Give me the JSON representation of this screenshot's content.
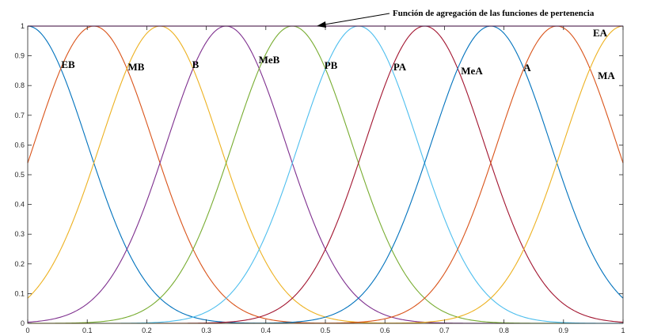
{
  "chart_data": {
    "type": "line",
    "annotation": "Función de agregación de las funciones de pertenencia",
    "xlim": [
      0,
      1
    ],
    "ylim": [
      0,
      1
    ],
    "x_ticks": [
      "0",
      "0.1",
      "0.2",
      "0.3",
      "0.4",
      "0.5",
      "0.6",
      "0.7",
      "0.8",
      "0.9",
      "1"
    ],
    "y_ticks": [
      "0",
      "0.1",
      "0.2",
      "0.3",
      "0.4",
      "0.5",
      "0.6",
      "0.7",
      "0.8",
      "0.9",
      "1"
    ],
    "grid": false,
    "series": [
      {
        "name": "EB",
        "center": 0.0,
        "sigma": 0.1,
        "color": "#0072BD"
      },
      {
        "name": "MB",
        "center": 0.1111,
        "sigma": 0.1,
        "color": "#D95319"
      },
      {
        "name": "B",
        "center": 0.2222,
        "sigma": 0.1,
        "color": "#EDB120"
      },
      {
        "name": "MeB",
        "center": 0.3333,
        "sigma": 0.1,
        "color": "#7E2F8E"
      },
      {
        "name": "PB",
        "center": 0.4444,
        "sigma": 0.1,
        "color": "#77AC30"
      },
      {
        "name": "PA",
        "center": 0.5556,
        "sigma": 0.1,
        "color": "#4DBEEE"
      },
      {
        "name": "MeA",
        "center": 0.6667,
        "sigma": 0.1,
        "color": "#A2142F"
      },
      {
        "name": "A",
        "center": 0.7778,
        "sigma": 0.1,
        "color": "#0072BD"
      },
      {
        "name": "MA",
        "center": 0.8889,
        "sigma": 0.1,
        "color": "#D95319"
      },
      {
        "name": "EA",
        "center": 1.0,
        "sigma": 0.1,
        "color": "#EDB120"
      }
    ],
    "aggregation": {
      "value": 1,
      "color": "#C14FC1"
    }
  }
}
